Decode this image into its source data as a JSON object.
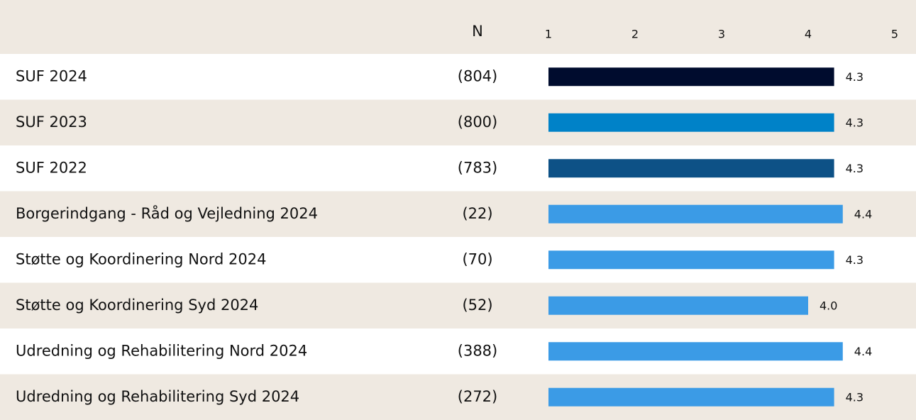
{
  "chart_data": {
    "type": "hbar",
    "n_header": "N",
    "categories": [
      "SUF 2024",
      "SUF 2023",
      "SUF 2022",
      "Borgerindgang - Råd og Vejledning 2024",
      "Støtte og Koordinering Nord 2024",
      "Støtte og Koordinering Syd 2024",
      "Udredning og Rehabilitering Nord 2024",
      "Udredning og Rehabilitering Syd 2024"
    ],
    "n_labels": [
      "(804)",
      "(800)",
      "(783)",
      "(22)",
      "(70)",
      "(52)",
      "(388)",
      "(272)"
    ],
    "values": [
      4.3,
      4.3,
      4.3,
      4.4,
      4.3,
      4.0,
      4.4,
      4.3
    ],
    "value_labels": [
      "4.3",
      "4.3",
      "4.3",
      "4.4",
      "4.3",
      "4.0",
      "4.4",
      "4.3"
    ],
    "colors": [
      "#000c2e",
      "#0082c8",
      "#0d5186",
      "#3b9be6",
      "#3b9be6",
      "#3b9be6",
      "#3b9be6",
      "#3b9be6"
    ],
    "xlim": [
      1,
      5
    ],
    "xticks": [
      1,
      2,
      3,
      4,
      5
    ]
  }
}
